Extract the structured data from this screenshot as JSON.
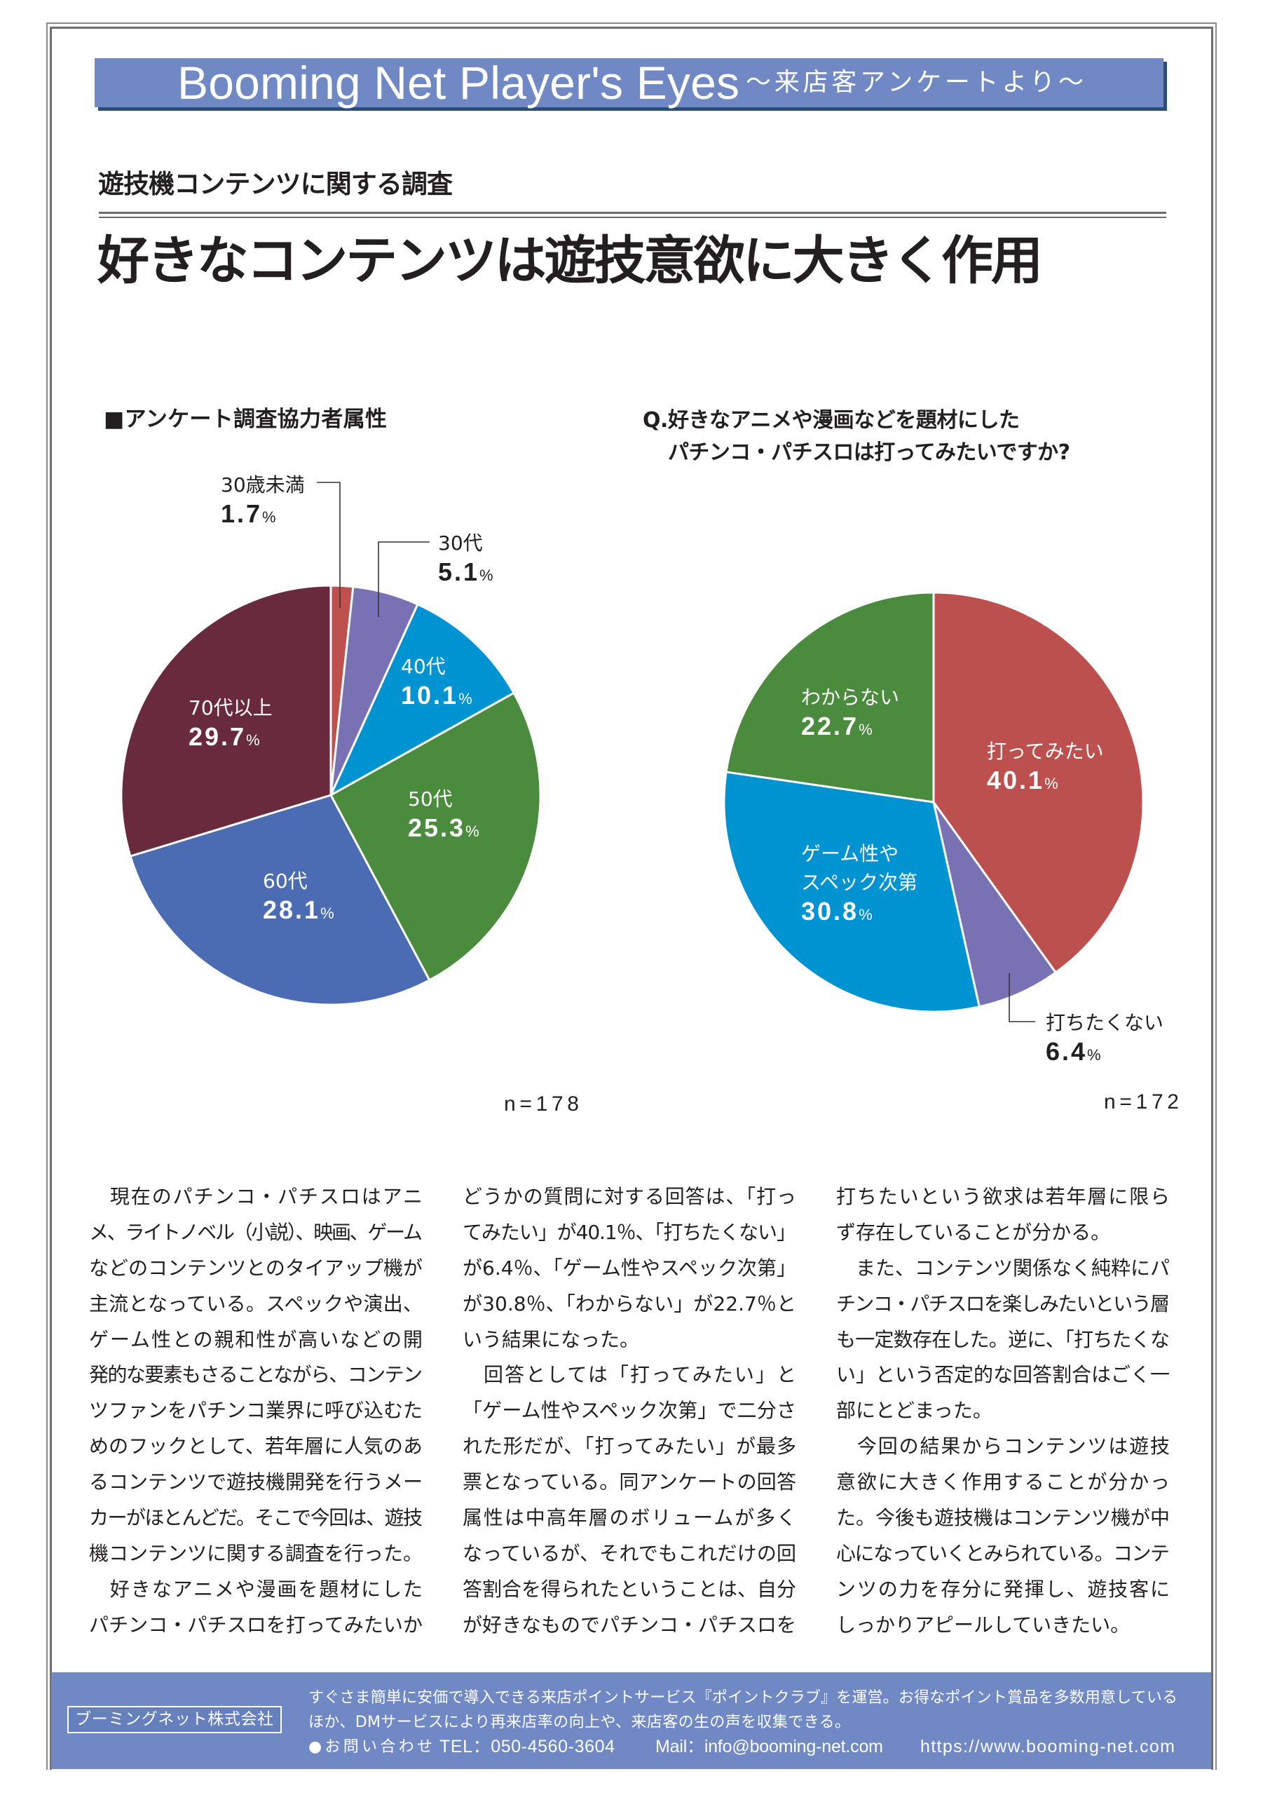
{
  "header": {
    "banner_title": "Booming Net Player's Eyes",
    "banner_subtitle": "～来店客アンケートより～",
    "kicker": "遊技機コンテンツに関する調査",
    "headline": "好きなコンテンツは遊技意欲に大きく作用"
  },
  "theme": {
    "banner_color": "#7089c5",
    "banner_shadow_color": "#2c4e74",
    "footer_color": "#7089c5",
    "text_color": "#231f20"
  },
  "chart_data": [
    {
      "type": "pie",
      "title_lines": [
        "■アンケート調査協力者属性"
      ],
      "sample_size_label": "n=178",
      "unit": "%",
      "start_angle": "12 o'clock",
      "direction": "clockwise",
      "legend": "none (direct labels)",
      "categories": [
        "30歳未満",
        "30代",
        "40代",
        "50代",
        "60代",
        "70代以上"
      ],
      "values": [
        1.7,
        5.1,
        10.1,
        25.3,
        28.1,
        29.7
      ],
      "colors": [
        "#be514e",
        "#7872b4",
        "#0093d2",
        "#4b8b3d",
        "#4b6bb2",
        "#6a2a3d"
      ]
    },
    {
      "type": "pie",
      "title_lines": [
        "Q.好きなアニメや漫画などを題材にした",
        "パチンコ・パチスロは打ってみたいですか?"
      ],
      "sample_size_label": "n=172",
      "unit": "%",
      "start_angle": "12 o'clock",
      "direction": "clockwise",
      "legend": "none (direct labels)",
      "categories": [
        "打ってみたい",
        "打ちたくない",
        "ゲーム性や\nスペック次第",
        "わからない"
      ],
      "values": [
        40.1,
        6.4,
        30.8,
        22.7
      ],
      "colors": [
        "#bc504e",
        "#7872b4",
        "#0093d2",
        "#4b8b3d"
      ]
    }
  ],
  "article": {
    "columns": [
      {
        "lines": [
          "　現在のパチンコ・パチスロはアニ",
          "メ、ライトノベル（小説）、映画、ゲーム",
          "などのコンテンツとのタイアップ機が",
          "主流となっている。スペックや演出、",
          "ゲーム性との親和性が高いなどの開",
          "発的な要素もさることながら、コンテン",
          "ツファンをパチンコ業界に呼び込むた",
          "めのフックとして、若年層に人気のあ",
          "るコンテンツで遊技機開発を行うメー",
          "カーがほとんどだ。そこで今回は、遊技",
          "機コンテンツに関する調査を行った。",
          "　好きなアニメや漫画を題材にした",
          "パチンコ・パチスロを打ってみたいか"
        ]
      },
      {
        "lines": [
          "どうかの質問に対する回答は、「打っ",
          "てみたい」が40.1％、「打ちたくない」",
          "が6.4％、「ゲーム性やスペック次第」",
          "が30.8％、「わからない」が22.7％と",
          "いう結果になった。",
          "　回答としては「打ってみたい」と",
          "「ゲーム性やスペック次第」で二分さ",
          "れた形だが、「打ってみたい」が最多",
          "票となっている。同アンケートの回答",
          "属性は中高年層のボリュームが多く",
          "なっているが、それでもこれだけの回",
          "答割合を得られたということは、自分",
          "が好きなものでパチンコ・パチスロを"
        ]
      },
      {
        "lines": [
          "打ちたいという欲求は若年層に限ら",
          "ず存在していることが分かる。",
          "　また、コンテンツ関係なく純粋にパ",
          "チンコ・パチスロを楽しみたいという層",
          "も一定数存在した。逆に、「打ちたくな",
          "い」という否定的な回答割合はごく一",
          "部にとどまった。",
          "　今回の結果からコンテンツは遊技",
          "意欲に大きく作用することが分かっ",
          "た。今後も遊技機はコンテンツ機が中",
          "心になっていくとみられている。コンテ",
          "ンツの力を存分に発揮し、遊技客に",
          "しっかりアピールしていきたい。"
        ]
      }
    ]
  },
  "footer": {
    "company": "ブーミングネット株式会社",
    "description_lines": [
      "すぐさま簡単に安価で導入できる来店ポイントサービス『ポイントクラブ』を運営。お得なポイント賞品を多数用意している",
      "ほか、DMサービスにより再来店率の向上や、来店客の生の声を収集できる。"
    ],
    "contact_label": "●お問い合わせ",
    "tel": "TEL：050-4560-3604",
    "mail": "Mail：info@booming-net.com",
    "url": "https://www.booming-net.com"
  }
}
